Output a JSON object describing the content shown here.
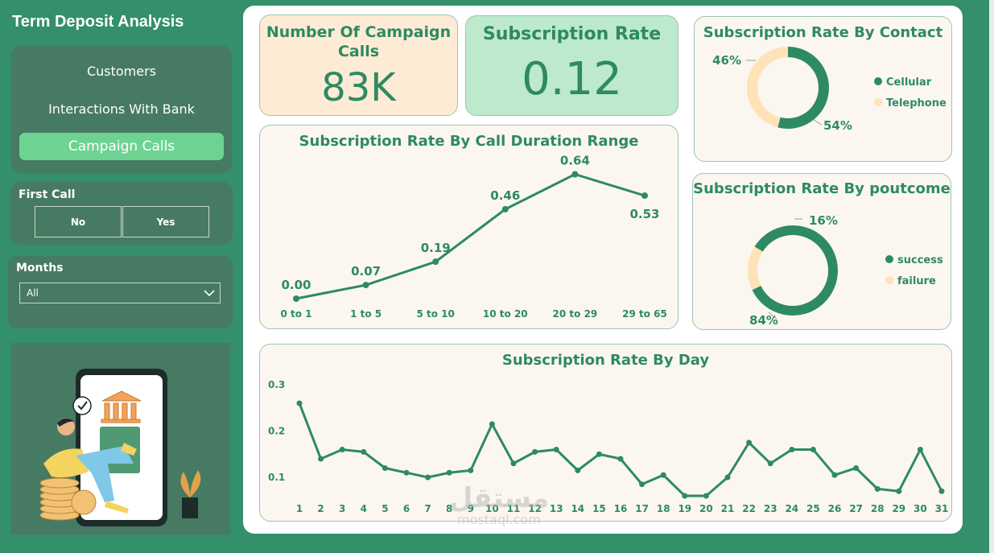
{
  "app": {
    "title": "Term Deposit Analysis"
  },
  "nav": {
    "items": [
      "Customers",
      "Interactions With Bank",
      "Campaign Calls"
    ],
    "active": "Campaign Calls"
  },
  "filters": {
    "first_call": {
      "label": "First Call",
      "options": [
        "No",
        "Yes"
      ]
    },
    "months": {
      "label": "Months",
      "selected": "All"
    }
  },
  "kpis": {
    "calls": {
      "label_line1": "Number Of Campaign",
      "label_line2": "Calls",
      "value": "83K"
    },
    "rate": {
      "label": "Subscription Rate",
      "value": "0.12"
    }
  },
  "colors": {
    "primary": "#2e8a62",
    "secondary": "#fde3b7",
    "background": "#33906a",
    "card": "#fbf7f0"
  },
  "charts": [
    {
      "id": "by-contact",
      "type": "pie",
      "title": "Subscription Rate By Contact",
      "categories": [
        "Cellular",
        "Telephone"
      ],
      "values": [
        54,
        46
      ],
      "value_labels": [
        "54%",
        "46%"
      ],
      "legend": "right"
    },
    {
      "id": "by-poutcome",
      "type": "pie",
      "title": "Subscription Rate By poutcome",
      "categories": [
        "success",
        "failure"
      ],
      "values": [
        84,
        16
      ],
      "value_labels": [
        "84%",
        "16%"
      ],
      "legend": "right"
    },
    {
      "id": "by-duration",
      "type": "line",
      "title": "Subscription Rate By Call Duration Range",
      "categories": [
        "0 to 1",
        "1 to 5",
        "5 to 10",
        "10 to 20",
        "20 to 29",
        "29 to 65"
      ],
      "values": [
        0.0,
        0.07,
        0.19,
        0.46,
        0.64,
        0.53
      ],
      "value_labels": [
        "0.00",
        "0.07",
        "0.19",
        "0.46",
        "0.64",
        "0.53"
      ],
      "ylim": [
        0,
        0.7
      ]
    },
    {
      "id": "by-day",
      "type": "line",
      "title": "Subscription Rate By Day",
      "categories": [
        "1",
        "2",
        "3",
        "4",
        "5",
        "6",
        "7",
        "8",
        "9",
        "10",
        "11",
        "12",
        "13",
        "14",
        "15",
        "16",
        "17",
        "18",
        "19",
        "20",
        "21",
        "22",
        "23",
        "24",
        "25",
        "26",
        "27",
        "28",
        "29",
        "30",
        "31"
      ],
      "values": [
        0.26,
        0.14,
        0.16,
        0.155,
        0.12,
        0.11,
        0.1,
        0.11,
        0.115,
        0.215,
        0.13,
        0.155,
        0.16,
        0.115,
        0.15,
        0.14,
        0.085,
        0.105,
        0.06,
        0.06,
        0.1,
        0.175,
        0.13,
        0.16,
        0.16,
        0.105,
        0.12,
        0.075,
        0.07,
        0.16,
        0.07
      ],
      "yticks": [
        "0.1",
        "0.2",
        "0.3"
      ],
      "ylim": [
        0.05,
        0.3
      ]
    }
  ],
  "watermark": {
    "arabic": "مستقل",
    "latin": "mostaql.com"
  }
}
